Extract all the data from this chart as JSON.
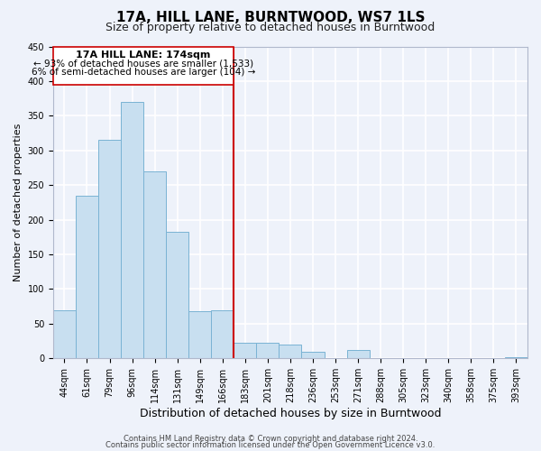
{
  "title": "17A, HILL LANE, BURNTWOOD, WS7 1LS",
  "subtitle": "Size of property relative to detached houses in Burntwood",
  "xlabel": "Distribution of detached houses by size in Burntwood",
  "ylabel": "Number of detached properties",
  "bar_labels": [
    "44sqm",
    "61sqm",
    "79sqm",
    "96sqm",
    "114sqm",
    "131sqm",
    "149sqm",
    "166sqm",
    "183sqm",
    "201sqm",
    "218sqm",
    "236sqm",
    "253sqm",
    "271sqm",
    "288sqm",
    "305sqm",
    "323sqm",
    "340sqm",
    "358sqm",
    "375sqm",
    "393sqm"
  ],
  "bar_values": [
    70,
    235,
    315,
    370,
    270,
    183,
    68,
    70,
    22,
    22,
    20,
    10,
    0,
    12,
    0,
    0,
    0,
    0,
    0,
    0,
    2
  ],
  "bar_color": "#c8dff0",
  "bar_edge_color": "#7ab3d4",
  "vline_index": 8,
  "vline_color": "#cc0000",
  "annotation_title": "17A HILL LANE: 174sqm",
  "annotation_line1": "← 93% of detached houses are smaller (1,533)",
  "annotation_line2": "6% of semi-detached houses are larger (104) →",
  "annotation_box_color": "#ffffff",
  "annotation_box_edge": "#cc0000",
  "ylim": [
    0,
    450
  ],
  "yticks": [
    0,
    50,
    100,
    150,
    200,
    250,
    300,
    350,
    400,
    450
  ],
  "footer1": "Contains HM Land Registry data © Crown copyright and database right 2024.",
  "footer2": "Contains public sector information licensed under the Open Government Licence v3.0.",
  "bg_color": "#eef2fa",
  "grid_color": "#ffffff",
  "title_fontsize": 11,
  "subtitle_fontsize": 9,
  "ylabel_fontsize": 8,
  "xlabel_fontsize": 9,
  "tick_fontsize": 7,
  "footer_fontsize": 6
}
